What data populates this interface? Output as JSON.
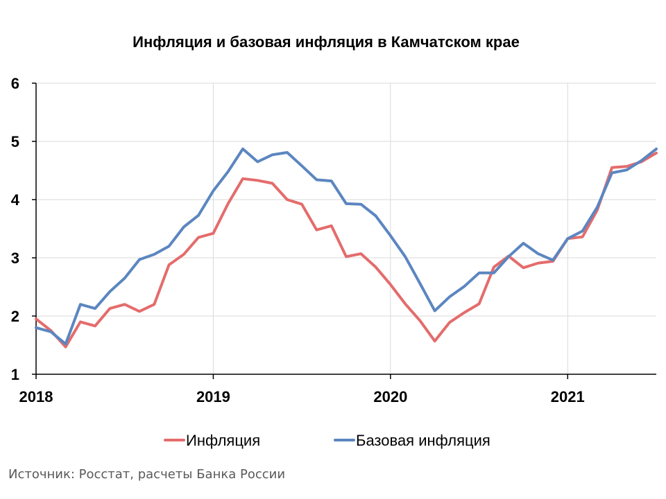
{
  "chart_data": {
    "type": "line",
    "title": "Инфляция и базовая инфляция в Камчатском крае",
    "xlabel": "",
    "ylabel": "",
    "ylim": [
      1,
      6
    ],
    "yticks": [
      "1",
      "2",
      "3",
      "4",
      "5",
      "6"
    ],
    "xticks": [
      "2018",
      "2019",
      "2020",
      "2021"
    ],
    "xrange_months": [
      0,
      41
    ],
    "grid": true,
    "legend_position": "bottom",
    "series": [
      {
        "name": "Инфляция",
        "color": "#e46c6c",
        "values": [
          1.95,
          1.75,
          1.47,
          1.9,
          1.83,
          2.13,
          2.2,
          2.08,
          2.2,
          2.88,
          3.06,
          3.35,
          3.42,
          3.93,
          4.36,
          4.33,
          4.28,
          4.0,
          3.92,
          3.48,
          3.55,
          3.02,
          3.07,
          2.84,
          2.54,
          2.21,
          1.92,
          1.57,
          1.89,
          2.06,
          2.21,
          2.84,
          3.03,
          2.83,
          2.91,
          2.94,
          3.33,
          3.36,
          3.82,
          4.55,
          4.57,
          4.65,
          4.8
        ]
      },
      {
        "name": "Базовая инфляция",
        "color": "#5b86c0",
        "values": [
          1.8,
          1.73,
          1.52,
          2.2,
          2.13,
          2.42,
          2.65,
          2.97,
          3.06,
          3.2,
          3.53,
          3.73,
          4.15,
          4.48,
          4.87,
          4.65,
          4.77,
          4.81,
          4.58,
          4.34,
          4.32,
          3.93,
          3.92,
          3.72,
          3.38,
          3.02,
          2.56,
          2.09,
          2.33,
          2.51,
          2.74,
          2.74,
          3.02,
          3.25,
          3.07,
          2.96,
          3.33,
          3.46,
          3.87,
          4.46,
          4.51,
          4.67,
          4.87
        ]
      }
    ]
  },
  "source": "Источник: Росстат, расчеты Банка России"
}
